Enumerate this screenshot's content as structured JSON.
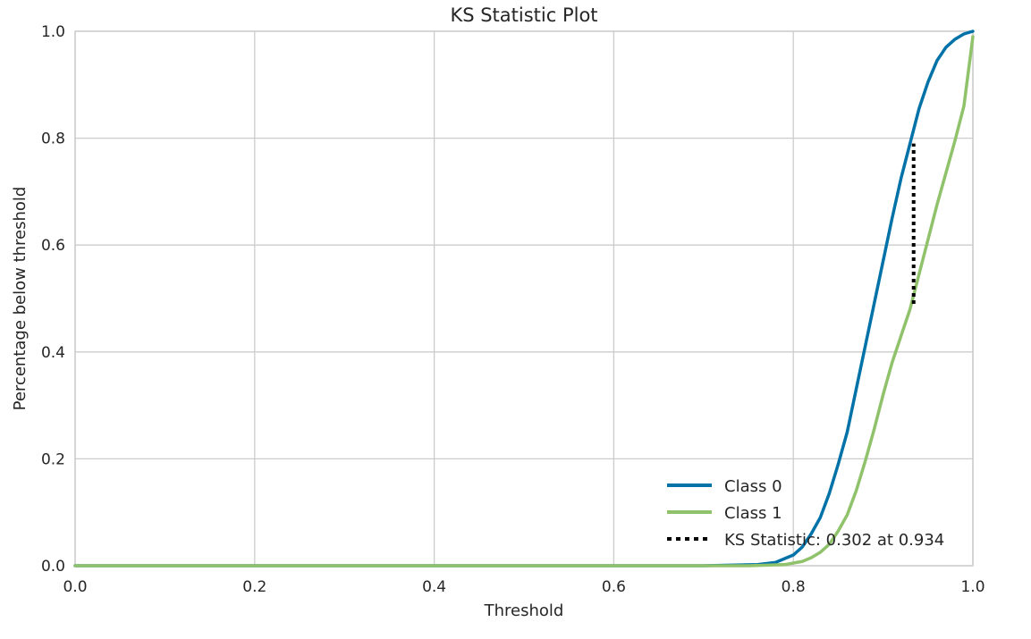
{
  "chart_data": {
    "type": "line",
    "title": "KS Statistic Plot",
    "xlabel": "Threshold",
    "ylabel": "Percentage below threshold",
    "xlim": [
      0.0,
      1.0
    ],
    "ylim": [
      0.0,
      1.0
    ],
    "grid": true,
    "legend_position": "bottom-right",
    "x_ticks": [
      {
        "value": 0.0,
        "label": "0.0"
      },
      {
        "value": 0.2,
        "label": "0.2"
      },
      {
        "value": 0.4,
        "label": "0.4"
      },
      {
        "value": 0.6,
        "label": "0.6"
      },
      {
        "value": 0.8,
        "label": "0.8"
      },
      {
        "value": 1.0,
        "label": "1.0"
      }
    ],
    "y_ticks": [
      {
        "value": 0.0,
        "label": "0.0"
      },
      {
        "value": 0.2,
        "label": "0.2"
      },
      {
        "value": 0.4,
        "label": "0.4"
      },
      {
        "value": 0.6,
        "label": "0.6"
      },
      {
        "value": 0.8,
        "label": "0.8"
      },
      {
        "value": 1.0,
        "label": "1.0"
      }
    ],
    "series": [
      {
        "name": "Class 0",
        "color": "#0072a8",
        "x": [
          0.0,
          0.7,
          0.76,
          0.78,
          0.8,
          0.81,
          0.82,
          0.83,
          0.84,
          0.85,
          0.86,
          0.87,
          0.88,
          0.89,
          0.9,
          0.91,
          0.92,
          0.93,
          0.94,
          0.95,
          0.96,
          0.97,
          0.98,
          0.99,
          1.0
        ],
        "y": [
          0.0,
          0.0,
          0.002,
          0.006,
          0.02,
          0.035,
          0.06,
          0.09,
          0.135,
          0.19,
          0.25,
          0.33,
          0.41,
          0.49,
          0.57,
          0.65,
          0.725,
          0.79,
          0.855,
          0.905,
          0.945,
          0.97,
          0.985,
          0.995,
          1.0
        ]
      },
      {
        "name": "Class 1",
        "color": "#8fc26a",
        "x": [
          0.0,
          0.75,
          0.79,
          0.81,
          0.82,
          0.83,
          0.84,
          0.85,
          0.86,
          0.87,
          0.88,
          0.89,
          0.9,
          0.91,
          0.92,
          0.93,
          0.94,
          0.95,
          0.96,
          0.97,
          0.98,
          0.99,
          1.0
        ],
        "y": [
          0.0,
          0.0,
          0.002,
          0.008,
          0.015,
          0.025,
          0.04,
          0.065,
          0.095,
          0.14,
          0.195,
          0.255,
          0.32,
          0.38,
          0.43,
          0.48,
          0.545,
          0.61,
          0.675,
          0.735,
          0.795,
          0.86,
          0.99
        ]
      }
    ],
    "ks_statistic": {
      "name": "KS Statistic: 0.302 at 0.934",
      "color": "#000000",
      "x": 0.934,
      "y_low": 0.49,
      "y_high": 0.79
    }
  }
}
